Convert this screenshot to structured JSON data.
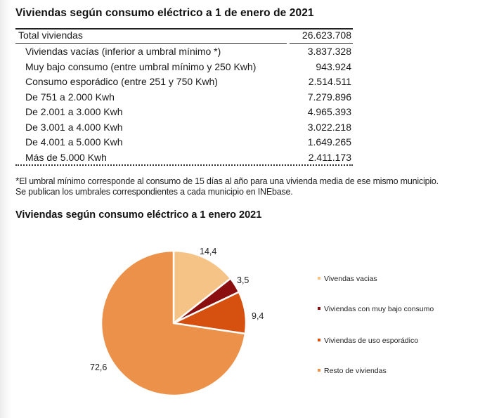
{
  "table": {
    "title": "Viviendas según consumo eléctrico a 1 de enero de 2021",
    "total": {
      "label": "Total viviendas",
      "value": "26.623.708"
    },
    "rows": [
      {
        "label": "Viviendas vacías (inferior a umbral mínimo *)",
        "value": "3.837.328"
      },
      {
        "label": "Muy bajo consumo (entre umbral mínimo y 250 Kwh)",
        "value": "943.924"
      },
      {
        "label": "Consumo esporádico (entre 251 y 750 Kwh)",
        "value": "2.514.511"
      },
      {
        "label": "De 751 a 2.000 Kwh",
        "value": "7.279.896"
      },
      {
        "label": "De 2.001 a 3.000 Kwh",
        "value": "4.965.393"
      },
      {
        "label": "De 3.001 a 4.000 Kwh",
        "value": "3.022.218"
      },
      {
        "label": "De 4.001 a 5.000 Kwh",
        "value": "1.649.265"
      },
      {
        "label": "Más de 5.000 Kwh",
        "value": "2.411.173"
      }
    ]
  },
  "note": {
    "star": "*",
    "line1": "El umbral mínimo corresponde al consumo de 15 días al año para una vivienda media de ese mismo municipio.",
    "line2": "Se publican los umbrales correspondientes a cada municipio en INEbase."
  },
  "chart_data": {
    "type": "pie",
    "title": "Viviendas según consumo eléctrico a 1 enero 2021",
    "categories": [
      "Vivendas vacias",
      "Viviendas con muy bajo consumo",
      "Viviendas de uso esporádico",
      "Resto de viviendas"
    ],
    "values": [
      14.4,
      3.5,
      9.4,
      72.6
    ],
    "value_labels": [
      "14,4",
      "3,5",
      "9,4",
      "72,6"
    ],
    "colors": [
      "#f5c386",
      "#8b0f0f",
      "#d6500f",
      "#ec914a"
    ],
    "start_angle": "12 o'clock, clockwise",
    "legend_position": "right",
    "unit": "%"
  }
}
